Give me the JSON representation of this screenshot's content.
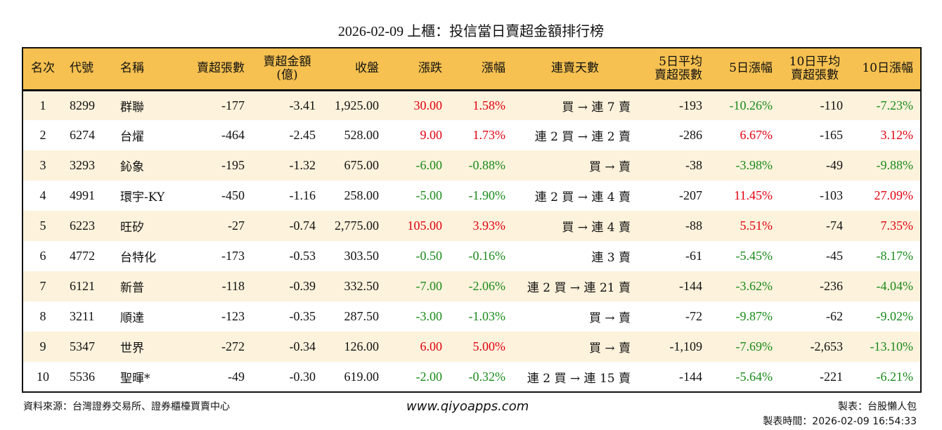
{
  "title": "2026-02-09 上櫃：投信當日賣超金額排行榜",
  "colors": {
    "header_bg": "#f6c150",
    "row_alt_bg": "#fdf2dc",
    "up": "#e0000f",
    "down": "#1a8a1a"
  },
  "headers": [
    "名次",
    "代號",
    "名稱",
    "賣超張數",
    "賣超金額\n(億)",
    "收盤",
    "漲跌",
    "漲幅",
    "連賣天數",
    "5日平均\n賣超張數",
    "5日漲幅",
    "10日平均\n賣超張數",
    "10日漲幅"
  ],
  "rows": [
    {
      "rank": "1",
      "code": "8299",
      "name": "群聯",
      "net_sell": "-177",
      "amount": "-3.41",
      "close": "1,925.00",
      "change": "30.00",
      "pct": "1.58%",
      "streak": "買 → 連 7 賣",
      "avg5": "-193",
      "pct5": "-10.26%",
      "avg10": "-110",
      "pct10": "-7.23%"
    },
    {
      "rank": "2",
      "code": "6274",
      "name": "台燿",
      "net_sell": "-464",
      "amount": "-2.45",
      "close": "528.00",
      "change": "9.00",
      "pct": "1.73%",
      "streak": "連 2 買 → 連 2 賣",
      "avg5": "-286",
      "pct5": "6.67%",
      "avg10": "-165",
      "pct10": "3.12%"
    },
    {
      "rank": "3",
      "code": "3293",
      "name": "鈊象",
      "net_sell": "-195",
      "amount": "-1.32",
      "close": "675.00",
      "change": "-6.00",
      "pct": "-0.88%",
      "streak": "買 → 賣",
      "avg5": "-38",
      "pct5": "-3.98%",
      "avg10": "-49",
      "pct10": "-9.88%"
    },
    {
      "rank": "4",
      "code": "4991",
      "name": "環宇-KY",
      "net_sell": "-450",
      "amount": "-1.16",
      "close": "258.00",
      "change": "-5.00",
      "pct": "-1.90%",
      "streak": "連 2 買 → 連 4 賣",
      "avg5": "-207",
      "pct5": "11.45%",
      "avg10": "-103",
      "pct10": "27.09%"
    },
    {
      "rank": "5",
      "code": "6223",
      "name": "旺矽",
      "net_sell": "-27",
      "amount": "-0.74",
      "close": "2,775.00",
      "change": "105.00",
      "pct": "3.93%",
      "streak": "買 → 連 4 賣",
      "avg5": "-88",
      "pct5": "5.51%",
      "avg10": "-74",
      "pct10": "7.35%"
    },
    {
      "rank": "6",
      "code": "4772",
      "name": "台特化",
      "net_sell": "-173",
      "amount": "-0.53",
      "close": "303.50",
      "change": "-0.50",
      "pct": "-0.16%",
      "streak": "連 3 賣",
      "avg5": "-61",
      "pct5": "-5.45%",
      "avg10": "-45",
      "pct10": "-8.17%"
    },
    {
      "rank": "7",
      "code": "6121",
      "name": "新普",
      "net_sell": "-118",
      "amount": "-0.39",
      "close": "332.50",
      "change": "-7.00",
      "pct": "-2.06%",
      "streak": "連 2 買 → 連 21 賣",
      "avg5": "-144",
      "pct5": "-3.62%",
      "avg10": "-236",
      "pct10": "-4.04%"
    },
    {
      "rank": "8",
      "code": "3211",
      "name": "順達",
      "net_sell": "-123",
      "amount": "-0.35",
      "close": "287.50",
      "change": "-3.00",
      "pct": "-1.03%",
      "streak": "買 → 賣",
      "avg5": "-72",
      "pct5": "-9.87%",
      "avg10": "-62",
      "pct10": "-9.02%"
    },
    {
      "rank": "9",
      "code": "5347",
      "name": "世界",
      "net_sell": "-272",
      "amount": "-0.34",
      "close": "126.00",
      "change": "6.00",
      "pct": "5.00%",
      "streak": "買 → 賣",
      "avg5": "-1,109",
      "pct5": "-7.69%",
      "avg10": "-2,653",
      "pct10": "-13.10%"
    },
    {
      "rank": "10",
      "code": "5536",
      "name": "聖暉*",
      "net_sell": "-49",
      "amount": "-0.30",
      "close": "619.00",
      "change": "-2.00",
      "pct": "-0.32%",
      "streak": "連 2 買 → 連 15 賣",
      "avg5": "-144",
      "pct5": "-5.64%",
      "avg10": "-221",
      "pct10": "-6.21%"
    }
  ],
  "footer": {
    "source": "資料來源：台灣證券交易所、證券櫃檯買賣中心",
    "website": "www.qiyoapps.com",
    "maker": "製表：台股懶人包",
    "time": "製表時間：2026-02-09 16:54:33"
  }
}
